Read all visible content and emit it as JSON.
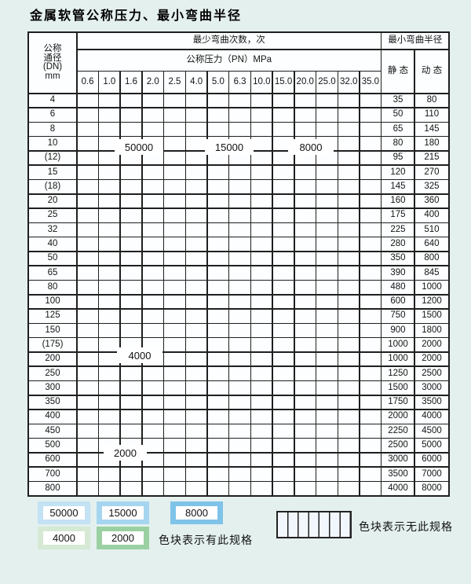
{
  "page_title": "金属软管公称压力、最小弯曲半径",
  "colors": {
    "page-bg": "#e4f0ee",
    "grid-line": "#1f1f1f",
    "header-bg": "#fcfeff",
    "label-col-bg": "#e7f2fa",
    "blue-50000": "#c3e2f3",
    "blue-15000": "#a6d5ef",
    "blue-8000": "#7fc3e9",
    "green-4000": "#d5e9d4",
    "green-2000": "#9bd0a2",
    "stripe-bg": "#f1f7fd",
    "stripe-line": "#3a3a3a",
    "text": "#141414"
  },
  "table": {
    "corner_header_lines": [
      "公称",
      "通径",
      "(DN)",
      "mm"
    ],
    "bend_cycles_header": "最少弯曲次数，次",
    "pressure_header": "公称压力（PN）MPa",
    "radius_header": "最小弯曲半径",
    "static_header": "静 态",
    "dynamic_header": "动 态",
    "pressure_columns": [
      "0.6",
      "1.0",
      "1.6",
      "2.0",
      "2.5",
      "4.0",
      "5.0",
      "6.3",
      "10.0",
      "15.0",
      "20.0",
      "25.0",
      "32.0",
      "35.0"
    ],
    "blue_shade_breaks": [
      5,
      8
    ],
    "rows": [
      {
        "dn": "4",
        "colored": 14,
        "palette": "blue",
        "static": "35",
        "dynamic": "80"
      },
      {
        "dn": "6",
        "colored": 12,
        "palette": "blue",
        "static": "50",
        "dynamic": "110"
      },
      {
        "dn": "8",
        "colored": 12,
        "palette": "blue",
        "static": "65",
        "dynamic": "145"
      },
      {
        "dn": "10",
        "colored": 12,
        "palette": "blue",
        "static": "80",
        "dynamic": "180"
      },
      {
        "dn": "(12)",
        "colored": 12,
        "palette": "blue",
        "static": "95",
        "dynamic": "215"
      },
      {
        "dn": "15",
        "colored": 12,
        "palette": "blue",
        "static": "120",
        "dynamic": "270"
      },
      {
        "dn": "(18)",
        "colored": 11,
        "palette": "blue",
        "static": "145",
        "dynamic": "325"
      },
      {
        "dn": "20",
        "colored": 11,
        "palette": "blue",
        "static": "160",
        "dynamic": "360"
      },
      {
        "dn": "25",
        "colored": 10,
        "palette": "blue",
        "static": "175",
        "dynamic": "400"
      },
      {
        "dn": "32",
        "colored": 9,
        "palette": "blue",
        "static": "225",
        "dynamic": "510"
      },
      {
        "dn": "40",
        "colored": 9,
        "palette": "blue",
        "static": "280",
        "dynamic": "640"
      },
      {
        "dn": "50",
        "colored": 8,
        "palette": "blue",
        "static": "350",
        "dynamic": "800"
      },
      {
        "dn": "65",
        "colored": 8,
        "palette": "blue",
        "static": "390",
        "dynamic": "845"
      },
      {
        "dn": "80",
        "colored": 7,
        "palette": "blue",
        "static": "480",
        "dynamic": "1000"
      },
      {
        "dn": "100",
        "colored": 6,
        "palette": "green-light",
        "static": "600",
        "dynamic": "1200"
      },
      {
        "dn": "125",
        "colored": 6,
        "palette": "green-light",
        "static": "750",
        "dynamic": "1500"
      },
      {
        "dn": "150",
        "colored": 6,
        "palette": "green-light",
        "static": "900",
        "dynamic": "1800"
      },
      {
        "dn": "(175)",
        "colored": 6,
        "palette": "green-light",
        "static": "1000",
        "dynamic": "2000"
      },
      {
        "dn": "200",
        "colored": 6,
        "palette": "green-light",
        "static": "1000",
        "dynamic": "2000"
      },
      {
        "dn": "250",
        "colored": 6,
        "palette": "green-light",
        "static": "1250",
        "dynamic": "2500"
      },
      {
        "dn": "300",
        "colored": 6,
        "palette": "green-light",
        "static": "1500",
        "dynamic": "3000"
      },
      {
        "dn": "350",
        "colored": 5,
        "palette": "green-dark",
        "static": "1750",
        "dynamic": "3500"
      },
      {
        "dn": "400",
        "colored": 5,
        "palette": "green-dark",
        "static": "2000",
        "dynamic": "4000"
      },
      {
        "dn": "450",
        "colored": 5,
        "palette": "green-dark",
        "static": "2250",
        "dynamic": "4500"
      },
      {
        "dn": "500",
        "colored": 5,
        "palette": "green-dark",
        "static": "2500",
        "dynamic": "5000"
      },
      {
        "dn": "600",
        "colored": 4,
        "palette": "green-dark",
        "static": "3000",
        "dynamic": "6000"
      },
      {
        "dn": "700",
        "colored": 3,
        "palette": "green-dark",
        "static": "3500",
        "dynamic": "7000"
      },
      {
        "dn": "800",
        "colored": 3,
        "palette": "green-dark",
        "static": "4000",
        "dynamic": "8000"
      }
    ]
  },
  "region_labels": [
    {
      "text": "50000"
    },
    {
      "text": "15000"
    },
    {
      "text": "8000"
    },
    {
      "text": "4000"
    },
    {
      "text": "2000"
    }
  ],
  "legend": {
    "swatches": [
      {
        "label": "50000"
      },
      {
        "label": "15000"
      },
      {
        "label": "8000"
      },
      {
        "label": "4000"
      },
      {
        "label": "2000"
      }
    ],
    "has_spec_note": "色块表示有此规格",
    "no_spec_note": "色块表示无此规格"
  }
}
